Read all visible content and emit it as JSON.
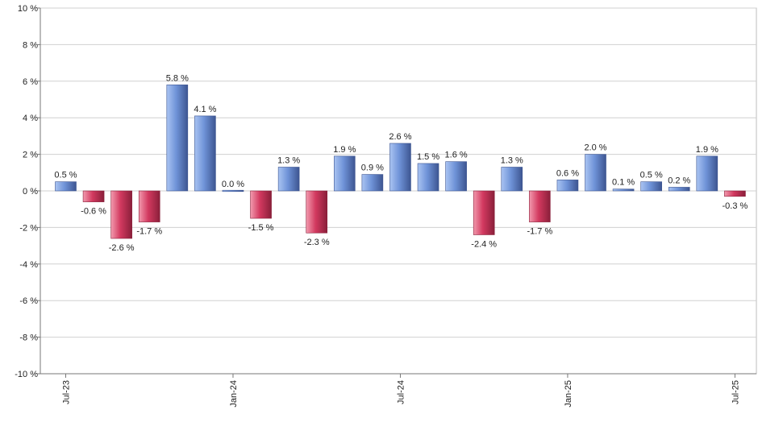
{
  "chart_data": {
    "type": "bar",
    "title": "",
    "xlabel": "",
    "ylabel": "",
    "unit_suffix": " %",
    "ylim": [
      -10,
      10
    ],
    "yticks": [
      10,
      8,
      6,
      4,
      2,
      0,
      -2,
      -4,
      -6,
      -8,
      -10
    ],
    "ytick_labels": [
      "10 %",
      "8 %",
      "6 %",
      "4 %",
      "2 %",
      "0 %",
      "-2 %",
      "-4 %",
      "-6 %",
      "-8 %",
      "-10 %"
    ],
    "grid": true,
    "legend": "none",
    "x_tick_labels": [
      {
        "index": 0,
        "label": "Jul-23"
      },
      {
        "index": 6,
        "label": "Jan-24"
      },
      {
        "index": 12,
        "label": "Jul-24"
      },
      {
        "index": 18,
        "label": "Jan-25"
      },
      {
        "index": 24,
        "label": "Jul-25"
      }
    ],
    "values": [
      0.5,
      -0.6,
      -2.6,
      -1.7,
      5.8,
      4.1,
      0.0,
      -1.5,
      1.3,
      -2.3,
      1.9,
      0.9,
      2.6,
      1.5,
      1.6,
      -2.4,
      1.3,
      -1.7,
      0.6,
      2.0,
      0.1,
      0.5,
      0.2,
      1.9,
      -0.3
    ],
    "value_labels": [
      "0.5 %",
      "-0.6 %",
      "-2.6 %",
      "-1.7 %",
      "5.8 %",
      "4.1 %",
      "0.0 %",
      "-1.5 %",
      "1.3 %",
      "-2.3 %",
      "1.9 %",
      "0.9 %",
      "2.6 %",
      "1.5 %",
      "1.6 %",
      "-2.4 %",
      "1.3 %",
      "-1.7 %",
      "0.6 %",
      "2.0 %",
      "0.1 %",
      "0.5 %",
      "0.2 %",
      "1.9 %",
      "-0.3 %"
    ],
    "colors": {
      "positive_light": "#aac4f2",
      "positive_mid": "#6f93d8",
      "positive_dark": "#3d5591",
      "negative_light": "#f29aae",
      "negative_mid": "#d2395f",
      "negative_dark": "#8a1f3a",
      "grid": "#d0d0d0"
    }
  }
}
